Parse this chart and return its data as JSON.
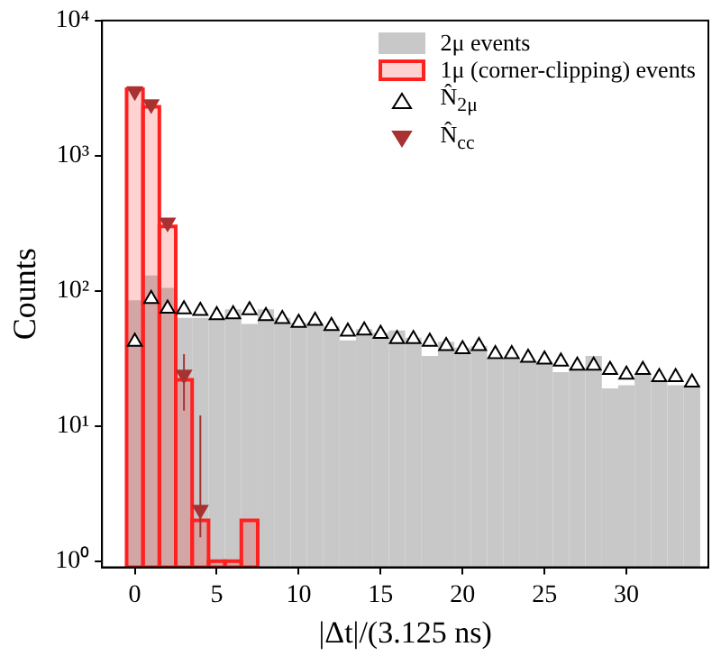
{
  "chart_data": {
    "type": "histogram",
    "xlabel": "|Δt|/(3.125 ns)",
    "ylabel": "Counts",
    "bins": [
      -0.5,
      0.5,
      1.5,
      2.5,
      3.5,
      4.5,
      5.5,
      6.5,
      7.5,
      8.5,
      9.5,
      10.5,
      11.5,
      12.5,
      13.5,
      14.5,
      15.5,
      16.5,
      17.5,
      18.5,
      19.5,
      20.5,
      21.5,
      22.5,
      23.5,
      24.5,
      25.5,
      26.5,
      27.5,
      28.5,
      29.5,
      30.5,
      31.5,
      32.5,
      33.5,
      34.5
    ],
    "series": [
      {
        "name": "2μ events",
        "color": "#c8c8c8",
        "values": [
          85,
          130,
          105,
          63,
          63,
          63,
          73,
          57,
          73,
          63,
          58,
          58,
          55,
          43,
          52,
          49,
          51,
          45,
          33,
          42,
          38,
          39,
          31,
          31,
          30,
          30,
          25,
          27,
          33,
          19,
          20,
          24,
          22,
          20,
          20
        ]
      },
      {
        "name": "1μ (corner-clipping) events",
        "color": "#ff2020",
        "bins": [
          -0.5,
          0.5,
          1.5,
          2.5,
          3.5,
          4.5,
          5.5,
          6.5,
          7.5
        ],
        "values": [
          3100,
          2300,
          300,
          22,
          2,
          1,
          1,
          2
        ]
      },
      {
        "name": "N̂$_{2μ}$",
        "type": "scatter",
        "marker": "triangle",
        "color": "#000000",
        "x": [
          0,
          1,
          2,
          3,
          4,
          5,
          6,
          7,
          8,
          9,
          10,
          11,
          12,
          13,
          14,
          15,
          16,
          17,
          18,
          19,
          20,
          21,
          22,
          23,
          24,
          25,
          26,
          27,
          28,
          29,
          30,
          31,
          32,
          33,
          34
        ],
        "values": [
          42,
          87,
          74,
          73,
          71,
          66,
          67,
          72,
          65,
          62,
          58,
          60,
          55,
          50,
          51,
          48,
          44,
          44,
          42,
          39,
          37,
          39,
          34,
          34,
          32,
          31,
          30,
          28,
          28,
          26,
          24,
          26,
          23,
          23,
          21
        ]
      },
      {
        "name": "N̂$_{cc}$",
        "type": "scatter",
        "marker": "triangle_down",
        "color": "#a83232",
        "x": [
          0,
          1,
          2,
          3,
          4
        ],
        "values": [
          3000,
          2400,
          320,
          24,
          2.4
        ],
        "errors": [
          null,
          null,
          null,
          [
            13,
            34
          ],
          [
            1.5,
            12
          ]
        ]
      }
    ],
    "xlim": [
      -2,
      35
    ],
    "xticks": [
      0,
      5,
      10,
      15,
      20,
      25,
      30
    ],
    "ylim": [
      0.9,
      10000
    ],
    "yticks": [
      {
        "value": 1,
        "label": "10⁰"
      },
      {
        "value": 10,
        "label": "10¹"
      },
      {
        "value": 100,
        "label": "10²"
      },
      {
        "value": 1000,
        "label": "10³"
      },
      {
        "value": 10000,
        "label": "10⁴"
      }
    ],
    "log": "y",
    "legend": "top right"
  }
}
